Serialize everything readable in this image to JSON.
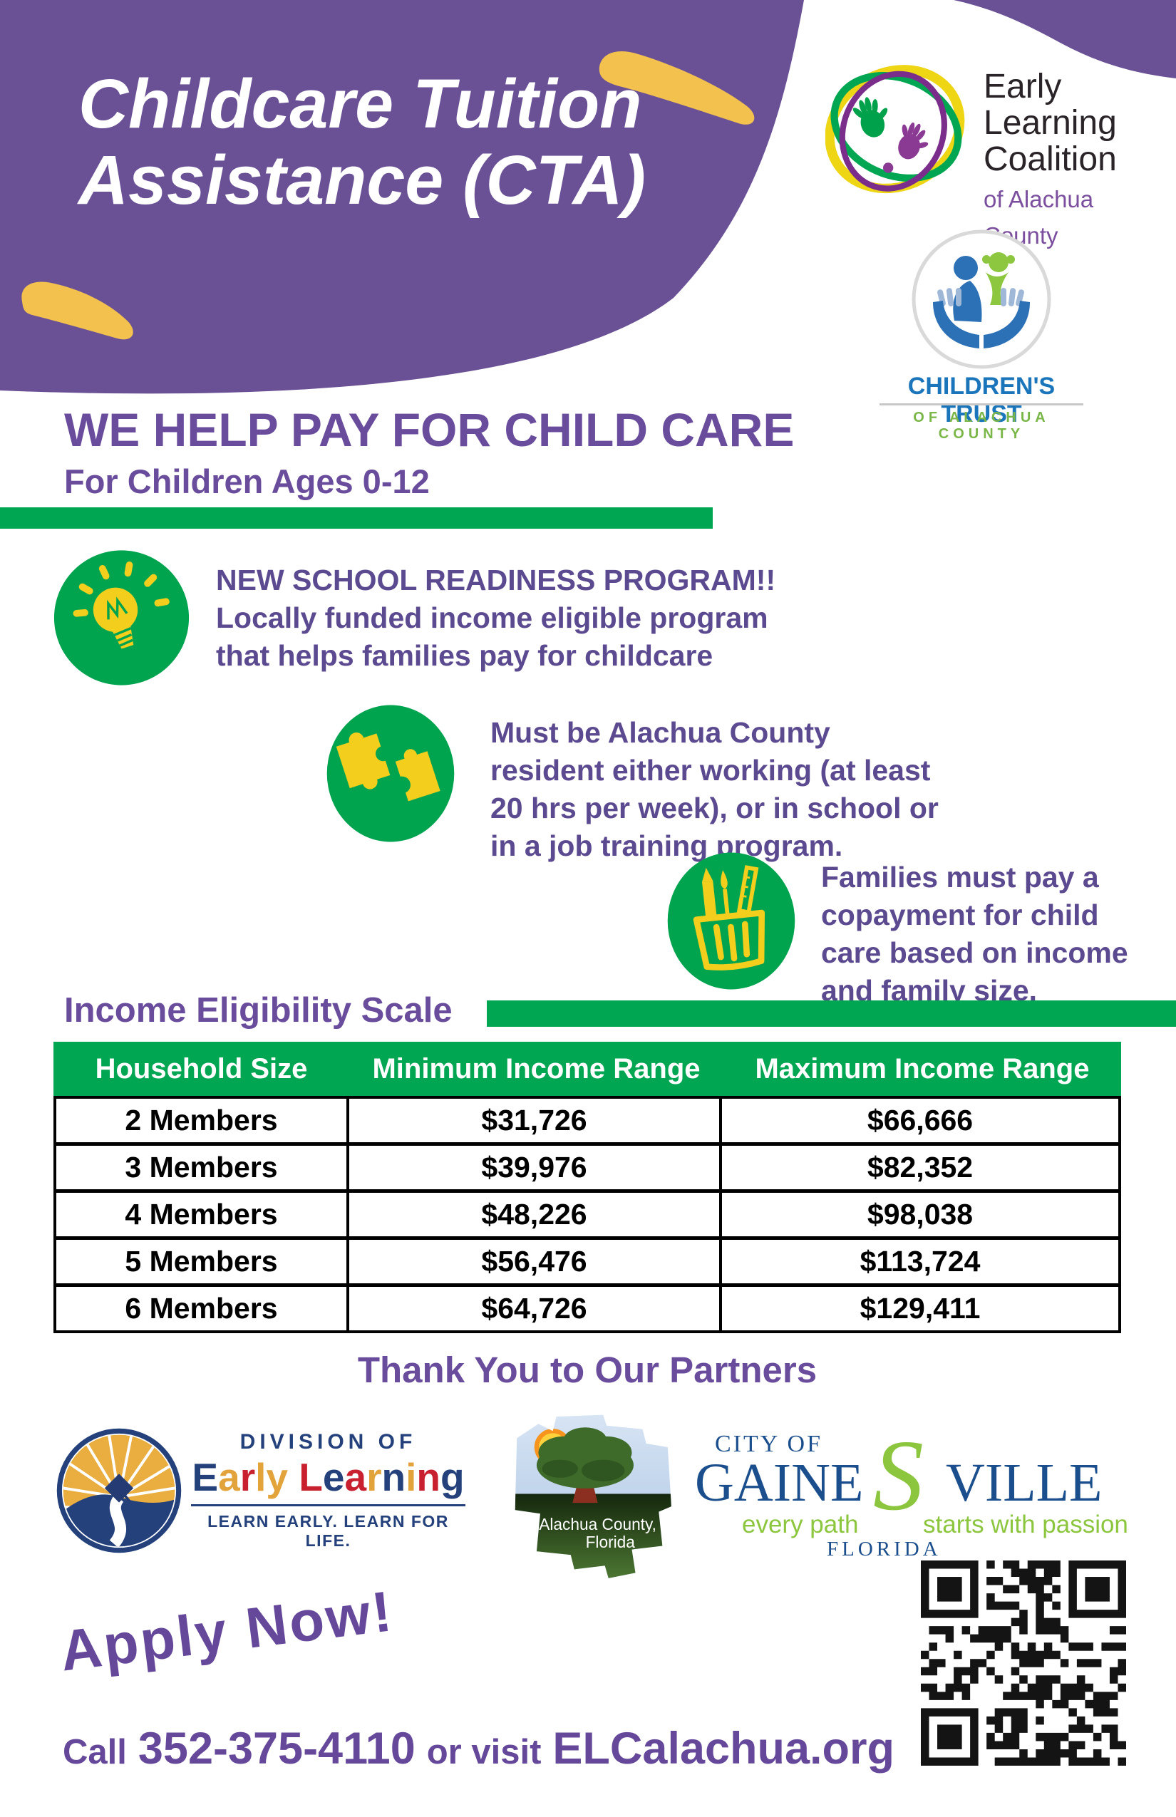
{
  "header": {
    "title_line1": "Childcare Tuition",
    "title_line2": "Assistance (CTA)"
  },
  "elc_logo": {
    "line1": "Early",
    "line2": "Learning",
    "line3": "Coalition",
    "tagline": "of Alachua County"
  },
  "childrens_trust_logo": {
    "name": "CHILDREN'S TRUST",
    "tagline": "OF ALACHUA COUNTY"
  },
  "intro": {
    "heading": "WE HELP PAY FOR CHILD CARE",
    "subheading": "For Children Ages 0-12"
  },
  "bullets": [
    {
      "icon": "lightbulb-icon",
      "lines": [
        "NEW SCHOOL READINESS PROGRAM!!",
        "Locally funded income eligible program",
        "that helps families pay for childcare"
      ]
    },
    {
      "icon": "puzzle-icon",
      "lines": [
        "Must be Alachua County",
        "resident either working (at least",
        "20 hrs per week), or in school or",
        "in a job training program."
      ]
    },
    {
      "icon": "pencil-cup-icon",
      "lines": [
        "Families must pay a",
        "copayment for child",
        "care based on income",
        "and family size."
      ]
    }
  ],
  "income_table": {
    "heading": "Income Eligibility Scale",
    "columns": [
      "Household Size",
      "Minimum Income Range",
      "Maximum Income Range"
    ],
    "rows": [
      [
        "2 Members",
        "$31,726",
        "$66,666"
      ],
      [
        "3 Members",
        "$39,976",
        "$82,352"
      ],
      [
        "4 Members",
        "$48,226",
        "$98,038"
      ],
      [
        "5 Members",
        "$56,476",
        "$113,724"
      ],
      [
        "6 Members",
        "$64,726",
        "$129,411"
      ]
    ]
  },
  "partners": {
    "heading": "Thank You to Our Partners",
    "del": {
      "top": "DIVISION OF",
      "letters": [
        {
          "ch": "E",
          "style": "color:#24417C"
        },
        {
          "ch": "a",
          "style": "color:#E2A33B"
        },
        {
          "ch": "r",
          "style": "color:#C8202F"
        },
        {
          "ch": "l",
          "style": "color:#E2A33B"
        },
        {
          "ch": "y",
          "style": "color:#E2A33B"
        },
        {
          "ch": " ",
          "style": ""
        },
        {
          "ch": "L",
          "style": "color:#C8202F"
        },
        {
          "ch": "e",
          "style": "color:#24417C"
        },
        {
          "ch": "a",
          "style": "color:#C8202F"
        },
        {
          "ch": "r",
          "style": "color:#E2A33B"
        },
        {
          "ch": "n",
          "style": "color:#24417C"
        },
        {
          "ch": "i",
          "style": "color:#E2A33B"
        },
        {
          "ch": "n",
          "style": "color:#C8202F"
        },
        {
          "ch": "g",
          "style": "color:#24417C"
        }
      ],
      "tagline": "LEARN EARLY. LEARN FOR LIFE."
    },
    "alachua": {
      "line1": "Alachua County,",
      "line2": "Florida"
    },
    "gainesville": {
      "top": "CITY OF",
      "name_left": "GAINE",
      "name_s": "S",
      "name_right": "VILLE",
      "tag_left": "every path",
      "tag_right": "starts with passion",
      "bottom": "FLORIDA"
    }
  },
  "cta": {
    "apply": "Apply Now!",
    "call_prefix": "Call",
    "phone": "352-375-4110",
    "connector": "or visit",
    "website": "ELCalachua.org"
  },
  "colors": {
    "header_purple": "#6A5195",
    "heading_purple": "#6A4C9C",
    "body_text_purple": "#5C4A90",
    "cta_purple": "#66489B",
    "green": "#00A651",
    "blob_yellow": "#F2C14E",
    "icon_yellow": "#F3CE1C"
  }
}
